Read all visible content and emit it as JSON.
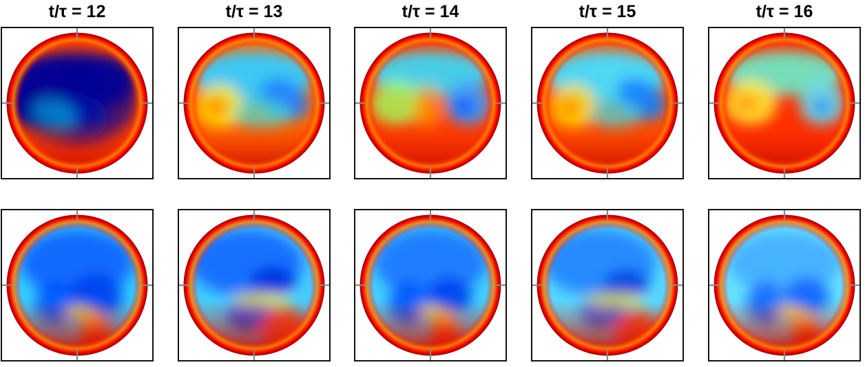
{
  "panel_labels": [
    "t/τ = 12",
    "t/τ = 13",
    "t/τ = 14",
    "t/τ = 15",
    "t/τ = 16"
  ],
  "colormap": [
    "#00008f",
    "#0000ff",
    "#0080ff",
    "#00ffff",
    "#80ff80",
    "#ffff00",
    "#ff8000",
    "#ff0000",
    "#800000"
  ],
  "rows": [
    [
      {
        "base": "#ff4400",
        "blobs": [
          [
            -0.35,
            -0.15,
            0.7,
            0.5,
            -10,
            "#00008f",
            0.95
          ],
          [
            0.3,
            -0.3,
            0.5,
            0.35,
            0,
            "#00008f",
            0.9
          ],
          [
            0.05,
            0.2,
            0.35,
            0.3,
            0,
            "#0040d0",
            0.8
          ],
          [
            0.0,
            -0.05,
            0.8,
            0.65,
            0,
            "#000099",
            0.7
          ],
          [
            -0.3,
            0.15,
            0.3,
            0.2,
            20,
            "#00ffff",
            0.45
          ]
        ]
      },
      {
        "base": "#ff6a00",
        "blobs": [
          [
            0.0,
            -0.35,
            0.8,
            0.35,
            0,
            "#33ccff",
            0.95
          ],
          [
            0.4,
            -0.05,
            0.35,
            0.25,
            30,
            "#2080ff",
            0.9
          ],
          [
            -0.45,
            0.05,
            0.3,
            0.3,
            0,
            "#ffee00",
            0.85
          ],
          [
            -0.5,
            0.05,
            0.15,
            0.15,
            0,
            "#ff8800",
            0.9
          ],
          [
            0.1,
            0.15,
            0.4,
            0.2,
            0,
            "#40e0e0",
            0.7
          ]
        ]
      },
      {
        "base": "#ff4000",
        "blobs": [
          [
            0.0,
            -0.4,
            0.8,
            0.3,
            0,
            "#33ddff",
            0.9
          ],
          [
            0.5,
            0.0,
            0.3,
            0.3,
            0,
            "#40a0ff",
            0.9
          ],
          [
            0.45,
            0.05,
            0.15,
            0.15,
            0,
            "#1060ff",
            0.9
          ],
          [
            -0.45,
            0.0,
            0.35,
            0.3,
            0,
            "#a0ff60",
            0.8
          ],
          [
            -0.05,
            0.05,
            0.2,
            0.3,
            0,
            "#ffaa00",
            0.6
          ]
        ]
      },
      {
        "base": "#ff5500",
        "blobs": [
          [
            0.0,
            -0.35,
            0.8,
            0.35,
            0,
            "#44ddff",
            0.95
          ],
          [
            0.45,
            -0.05,
            0.35,
            0.25,
            30,
            "#1080ff",
            0.9
          ],
          [
            -0.45,
            0.05,
            0.3,
            0.3,
            0,
            "#ffdd00",
            0.85
          ],
          [
            -0.5,
            0.05,
            0.12,
            0.12,
            0,
            "#ff7700",
            0.9
          ],
          [
            0.1,
            0.15,
            0.35,
            0.2,
            0,
            "#40d8e8",
            0.7
          ]
        ]
      },
      {
        "base": "#ff3000",
        "blobs": [
          [
            0.0,
            -0.4,
            0.8,
            0.3,
            0,
            "#66eecc",
            0.9
          ],
          [
            0.5,
            0.0,
            0.3,
            0.3,
            0,
            "#66ddee",
            0.9
          ],
          [
            0.5,
            0.05,
            0.12,
            0.12,
            0,
            "#2090ff",
            0.9
          ],
          [
            -0.45,
            0.0,
            0.35,
            0.3,
            0,
            "#ffee33",
            0.85
          ],
          [
            -0.5,
            0.0,
            0.12,
            0.12,
            0,
            "#ff8800",
            0.9
          ]
        ]
      }
    ],
    [
      {
        "base": "#33ccff",
        "blobs": [
          [
            0.0,
            -0.3,
            0.75,
            0.45,
            0,
            "#1060ff",
            0.9
          ],
          [
            0.25,
            0.15,
            0.35,
            0.3,
            0,
            "#0040f0",
            0.9
          ],
          [
            -0.3,
            0.25,
            0.25,
            0.3,
            0,
            "#0050ff",
            0.85
          ],
          [
            0.25,
            0.75,
            0.2,
            0.35,
            0,
            "#ff3000",
            0.9
          ],
          [
            0.1,
            0.4,
            0.25,
            0.1,
            20,
            "#ffdd00",
            0.8
          ]
        ]
      },
      {
        "base": "#44ccff",
        "blobs": [
          [
            -0.1,
            -0.3,
            0.75,
            0.45,
            0,
            "#1060ff",
            0.85
          ],
          [
            0.25,
            -0.05,
            0.3,
            0.2,
            0,
            "#0030e0",
            0.9
          ],
          [
            -0.05,
            0.4,
            0.3,
            0.25,
            0,
            "#0040f0",
            0.9
          ],
          [
            0.4,
            0.6,
            0.3,
            0.3,
            0,
            "#ff3300",
            0.85
          ],
          [
            0.1,
            0.2,
            0.4,
            0.1,
            0,
            "#ffee00",
            0.75
          ]
        ]
      },
      {
        "base": "#44d0ff",
        "blobs": [
          [
            0.0,
            -0.3,
            0.75,
            0.45,
            0,
            "#1870ff",
            0.85
          ],
          [
            0.25,
            0.15,
            0.3,
            0.25,
            0,
            "#0040f0",
            0.9
          ],
          [
            -0.3,
            0.25,
            0.25,
            0.3,
            0,
            "#0050ff",
            0.85
          ],
          [
            0.2,
            0.75,
            0.2,
            0.35,
            0,
            "#ff3000",
            0.9
          ],
          [
            0.1,
            0.4,
            0.25,
            0.1,
            20,
            "#ffdd00",
            0.8
          ]
        ]
      },
      {
        "base": "#55d8ff",
        "blobs": [
          [
            -0.1,
            -0.3,
            0.75,
            0.45,
            0,
            "#1878ff",
            0.8
          ],
          [
            0.25,
            0.0,
            0.3,
            0.2,
            0,
            "#0040e0",
            0.9
          ],
          [
            -0.05,
            0.35,
            0.3,
            0.25,
            0,
            "#0050f0",
            0.85
          ],
          [
            0.4,
            0.65,
            0.3,
            0.3,
            0,
            "#ff3300",
            0.85
          ],
          [
            0.1,
            0.2,
            0.4,
            0.1,
            0,
            "#ffee00",
            0.75
          ]
        ]
      },
      {
        "base": "#66e0ff",
        "blobs": [
          [
            0.0,
            -0.3,
            0.75,
            0.4,
            0,
            "#40a8ff",
            0.8
          ],
          [
            0.3,
            0.15,
            0.3,
            0.25,
            0,
            "#1060ff",
            0.9
          ],
          [
            -0.25,
            0.25,
            0.25,
            0.3,
            0,
            "#1060ff",
            0.85
          ],
          [
            0.3,
            0.75,
            0.2,
            0.3,
            0,
            "#ff3000",
            0.9
          ],
          [
            0.15,
            0.4,
            0.25,
            0.1,
            20,
            "#ffdd00",
            0.8
          ]
        ]
      }
    ]
  ]
}
